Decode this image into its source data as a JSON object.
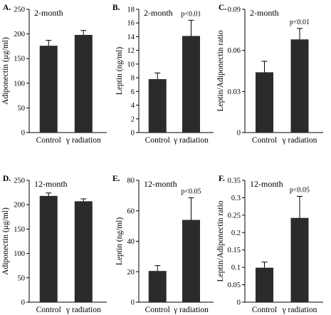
{
  "chart_data": [
    {
      "panel": "A.",
      "type": "bar",
      "subtitle": "2-month",
      "ylabel": "Adiponectin (μg/ml)",
      "categories": [
        "Control",
        "γ radiation"
      ],
      "values": [
        176,
        198
      ],
      "errors": [
        11,
        9
      ],
      "ylim": [
        0,
        250
      ],
      "yticks": [
        "0",
        "50",
        "100",
        "150",
        "200",
        "250"
      ],
      "annotation": ""
    },
    {
      "panel": "B.",
      "type": "bar",
      "subtitle": "2-month",
      "ylabel": "Leptin (ng/ml)",
      "categories": [
        "Control",
        "γ radiation"
      ],
      "values": [
        7.8,
        14.1
      ],
      "errors": [
        0.9,
        2.3
      ],
      "ylim": [
        0,
        18
      ],
      "yticks": [
        "0",
        "2",
        "4",
        "6",
        "8",
        "10",
        "12",
        "14",
        "16",
        "18"
      ],
      "annotation": "p<0.01"
    },
    {
      "panel": "C.",
      "type": "bar",
      "subtitle": "2-month",
      "ylabel": "Leptin/Adiponectin ratio",
      "categories": [
        "Control",
        "γ radiation"
      ],
      "values": [
        0.044,
        0.068
      ],
      "errors": [
        0.008,
        0.008
      ],
      "ylim": [
        0,
        0.09
      ],
      "yticks": [
        "0",
        "0.03",
        "0.06",
        "0.09"
      ],
      "annotation": "p<0.01"
    },
    {
      "panel": "D.",
      "type": "bar",
      "subtitle": "12-month",
      "ylabel": "Adiponectin (μg/ml)",
      "categories": [
        "Control",
        "γ radiation"
      ],
      "values": [
        218,
        207
      ],
      "errors": [
        6,
        5
      ],
      "ylim": [
        0,
        250
      ],
      "yticks": [
        "0",
        "50",
        "100",
        "150",
        "200",
        "250"
      ],
      "annotation": ""
    },
    {
      "panel": "E.",
      "type": "bar",
      "subtitle": "12-month",
      "ylabel": "Leptin (ng/ml)",
      "categories": [
        "Control",
        "γ radiation"
      ],
      "values": [
        20.5,
        54
      ],
      "errors": [
        3.5,
        14.5
      ],
      "ylim": [
        0,
        80
      ],
      "yticks": [
        "0",
        "20",
        "40",
        "60",
        "80"
      ],
      "annotation": "p<0.05"
    },
    {
      "panel": "F.",
      "type": "bar",
      "subtitle": "12-month",
      "ylabel": "Leptin/Adiponectin ratio",
      "categories": [
        "Control",
        "γ radiation"
      ],
      "values": [
        0.099,
        0.242
      ],
      "errors": [
        0.016,
        0.062
      ],
      "ylim": [
        0,
        0.35
      ],
      "yticks": [
        "0",
        "0.05",
        "0.1",
        "0.15",
        "0.2",
        "0.25",
        "0.3",
        "0.35"
      ],
      "annotation": "p<0.05"
    }
  ],
  "colors": {
    "bar": "#2b2b2b",
    "axis": "#000000",
    "text": "#000000"
  }
}
